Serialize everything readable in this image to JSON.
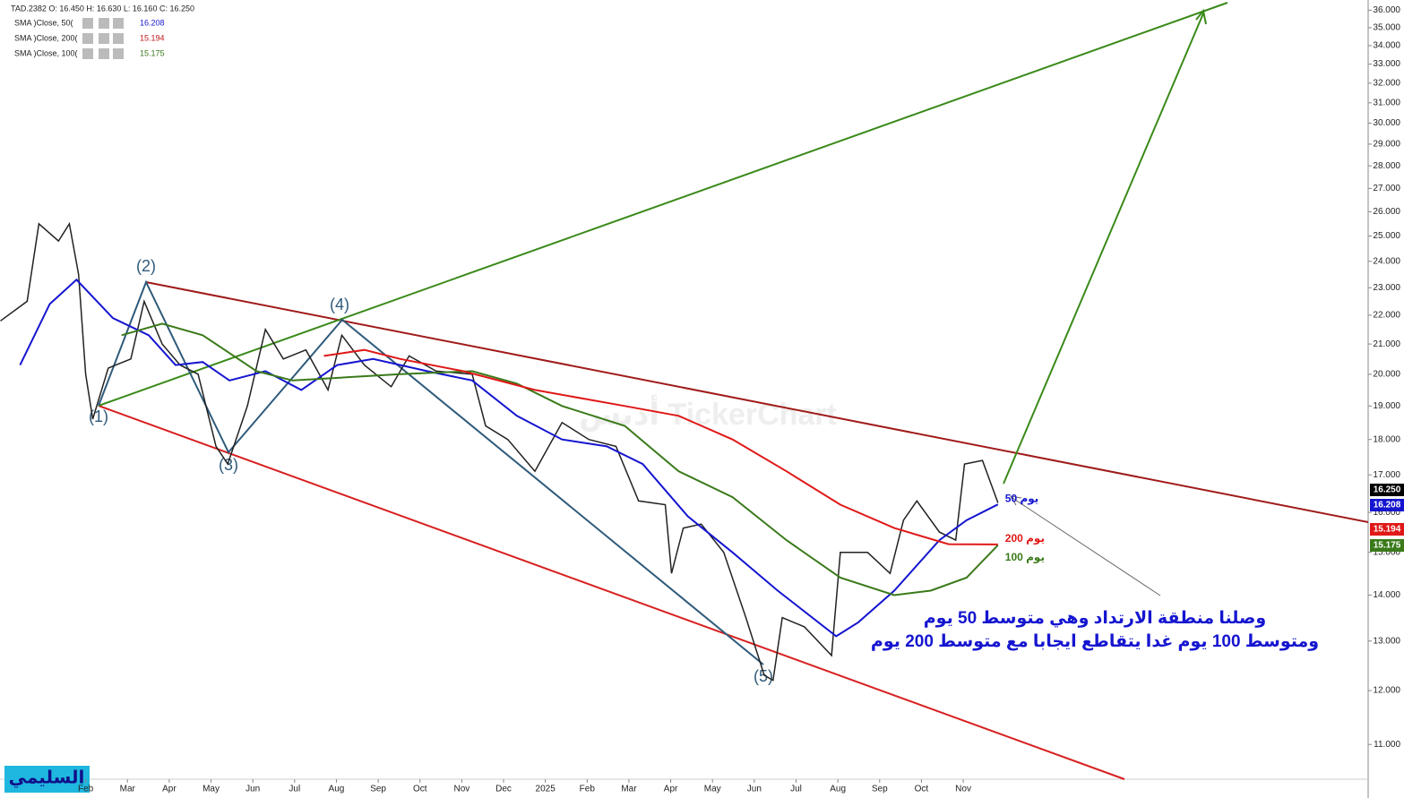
{
  "chart_data": {
    "type": "line",
    "header": "TAD.2382   O: 16.450  H: 16.630  L: 16.160  C: 16.250",
    "indicators": [
      {
        "name": "SMA  )Close, 50(",
        "value": "16.208",
        "color": "#1515d0"
      },
      {
        "name": "SMA  )Close, 200(",
        "value": "15.194",
        "color": "#c01818"
      },
      {
        "name": "SMA  )Close, 100(",
        "value": "15.175",
        "color": "#3a7a1a"
      }
    ],
    "log_scale": true,
    "xlim": [
      -2.05,
      30.69
    ],
    "ylim": [
      10.4,
      36.6
    ],
    "xticks": [
      {
        "value": 0,
        "label": "Feb"
      },
      {
        "value": 1,
        "label": "Mar"
      },
      {
        "value": 2,
        "label": "Apr"
      },
      {
        "value": 3,
        "label": "May"
      },
      {
        "value": 4,
        "label": "Jun"
      },
      {
        "value": 5,
        "label": "Jul"
      },
      {
        "value": 6,
        "label": "Aug"
      },
      {
        "value": 7,
        "label": "Sep"
      },
      {
        "value": 8,
        "label": "Oct"
      },
      {
        "value": 9,
        "label": "Nov"
      },
      {
        "value": 10,
        "label": "Dec"
      },
      {
        "value": 11,
        "label": "2025"
      },
      {
        "value": 12,
        "label": "Feb"
      },
      {
        "value": 13,
        "label": "Mar"
      },
      {
        "value": 14,
        "label": "Apr"
      },
      {
        "value": 15,
        "label": "May"
      },
      {
        "value": 16,
        "label": "Jun"
      },
      {
        "value": 17,
        "label": "Jul"
      },
      {
        "value": 18,
        "label": "Aug"
      },
      {
        "value": 19,
        "label": "Sep"
      },
      {
        "value": 20,
        "label": "Oct"
      },
      {
        "value": 21,
        "label": "Nov"
      }
    ],
    "yticks": [
      {
        "value": 11,
        "label": "11.000"
      },
      {
        "value": 12,
        "label": "12.000"
      },
      {
        "value": 13,
        "label": "13.000"
      },
      {
        "value": 14,
        "label": "14.000"
      },
      {
        "value": 15,
        "label": "15.000"
      },
      {
        "value": 16,
        "label": "16.000"
      },
      {
        "value": 17,
        "label": "17.000"
      },
      {
        "value": 18,
        "label": "18.000"
      },
      {
        "value": 19,
        "label": "19.000"
      },
      {
        "value": 20,
        "label": "20.000"
      },
      {
        "value": 21,
        "label": "21.000"
      },
      {
        "value": 22,
        "label": "22.000"
      },
      {
        "value": 23,
        "label": "23.000"
      },
      {
        "value": 24,
        "label": "24.000"
      },
      {
        "value": 25,
        "label": "25.000"
      },
      {
        "value": 26,
        "label": "26.000"
      },
      {
        "value": 27,
        "label": "27.000"
      },
      {
        "value": 28,
        "label": "28.000"
      },
      {
        "value": 29,
        "label": "29.000"
      },
      {
        "value": 30,
        "label": "30.000"
      },
      {
        "value": 31,
        "label": "31.000"
      },
      {
        "value": 32,
        "label": "32.000"
      },
      {
        "value": 33,
        "label": "33.000"
      },
      {
        "value": 34,
        "label": "34.000"
      },
      {
        "value": 35,
        "label": "35.000"
      },
      {
        "value": 36,
        "label": "36.000"
      }
    ],
    "series": [
      {
        "name": "TAD.2382",
        "color": "#222222",
        "x": [
          -2.04,
          -1.4,
          -1.12,
          -0.65,
          -0.39,
          -0.17,
          0,
          0.17,
          0.54,
          1.08,
          1.4,
          1.83,
          2.26,
          2.69,
          3.12,
          3.4,
          3.87,
          4.3,
          4.73,
          5.27,
          5.8,
          6.13,
          6.67,
          7.31,
          7.74,
          8.39,
          9.25,
          9.57,
          10.1,
          10.75,
          11.4,
          12.04,
          12.69,
          13.23,
          13.87,
          14.02,
          14.3,
          14.73,
          15.27,
          15.8,
          16.24,
          16.45,
          16.67,
          17.2,
          17.85,
          18.06,
          18.71,
          19.25,
          19.57,
          19.89,
          20.43,
          20.82,
          21.03,
          21.46,
          21.83
        ],
        "values": [
          21.8,
          22.5,
          25.5,
          24.8,
          25.5,
          23.5,
          20,
          18.6,
          20.2,
          20.5,
          22.5,
          21,
          20.3,
          20,
          17.8,
          17.3,
          19,
          21.5,
          20.5,
          20.8,
          19.5,
          21.3,
          20.3,
          19.6,
          20.6,
          20.1,
          20,
          18.4,
          18,
          17.1,
          18.5,
          18,
          17.8,
          16.3,
          16.2,
          14.5,
          15.6,
          15.7,
          15,
          13.5,
          12.3,
          12.2,
          13.5,
          13.3,
          12.7,
          15,
          15,
          14.5,
          15.8,
          16.3,
          15.5,
          15.3,
          17.3,
          17.4,
          16.25
        ]
      },
      {
        "name": "50 يوم",
        "color": "#1515d0",
        "x": [
          -1.57,
          -0.86,
          -0.22,
          0.65,
          1.51,
          2.15,
          2.8,
          3.44,
          4.3,
          5.16,
          6.02,
          6.88,
          8.17,
          9.25,
          10.32,
          11.4,
          12.47,
          13.33,
          14.41,
          15.48,
          16.56,
          17.96,
          18.49,
          19.35,
          20.43,
          21.08,
          21.83
        ],
        "values": [
          20.3,
          22.4,
          23.3,
          21.9,
          21.3,
          20.3,
          20.4,
          19.8,
          20.1,
          19.5,
          20.3,
          20.5,
          20.1,
          19.8,
          18.7,
          18.0,
          17.8,
          17.3,
          15.9,
          15.0,
          14.1,
          13.1,
          13.4,
          14.1,
          15.3,
          15.8,
          16.208
        ]
      },
      {
        "name": "100 يوم",
        "color": "#3a7a1a",
        "x": [
          0.86,
          1.83,
          2.8,
          4.09,
          4.95,
          6.24,
          7.53,
          9.25,
          10.32,
          11.4,
          12.9,
          14.19,
          15.48,
          16.77,
          18.06,
          19.35,
          20.22,
          21.08,
          21.83
        ],
        "values": [
          21.3,
          21.7,
          21.3,
          20.1,
          19.8,
          19.9,
          20.0,
          20.1,
          19.7,
          19.0,
          18.4,
          17.1,
          16.4,
          15.3,
          14.4,
          14.0,
          14.1,
          14.4,
          15.175
        ]
      },
      {
        "name": "200 يوم",
        "color": "#e01818",
        "x": [
          5.7,
          6.67,
          7.53,
          9.03,
          10.75,
          12.9,
          14.19,
          15.48,
          16.77,
          18.06,
          19.35,
          20.65,
          21.83
        ],
        "values": [
          20.6,
          20.8,
          20.5,
          20.1,
          19.5,
          19.0,
          18.7,
          18.0,
          17.1,
          16.2,
          15.6,
          15.2,
          15.194
        ]
      }
    ],
    "price_tags": [
      {
        "value": 16.25,
        "label": "16.250",
        "color": "#000000"
      },
      {
        "value": 16.208,
        "label": "16.208",
        "color": "#1515d0"
      },
      {
        "value": 15.194,
        "label": "15.194",
        "color": "#e01818"
      },
      {
        "value": 15.175,
        "label": "15.175",
        "color": "#3a7a1a"
      }
    ],
    "waves": [
      "(1)",
      "(2)",
      "(3)",
      "(4)",
      "(5)"
    ],
    "annotation": [
      "وصلنا منطقة الارتداد وهي متوسط 50 يوم",
      "ومتوسط 100 يوم غدا يتقاطع ايجابا مع متوسط 200 يوم"
    ],
    "watermark": "أدبس TickerChart",
    "logo": "السليمي"
  }
}
